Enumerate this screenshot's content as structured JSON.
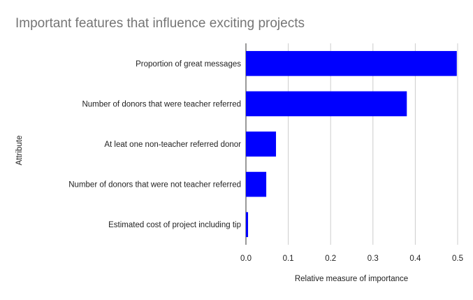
{
  "chart_data": {
    "type": "bar",
    "orientation": "horizontal",
    "title": "Important features that influence exciting projects",
    "xlabel": "Relative measure of importance",
    "ylabel": "Attribute",
    "xlim": [
      0,
      0.5
    ],
    "xticks": [
      "0.0",
      "0.1",
      "0.2",
      "0.3",
      "0.4",
      "0.5"
    ],
    "grid": "vertical",
    "legend": "none",
    "bar_color": "#0000ff",
    "categories": [
      "Proportion of great messages",
      "Number of donors that were teacher referred",
      "At leat one non-teacher referred donor",
      "Number of donors that were not teacher referred",
      "Estimated cost of project including tip"
    ],
    "values": [
      0.498,
      0.38,
      0.071,
      0.048,
      0.005
    ]
  }
}
